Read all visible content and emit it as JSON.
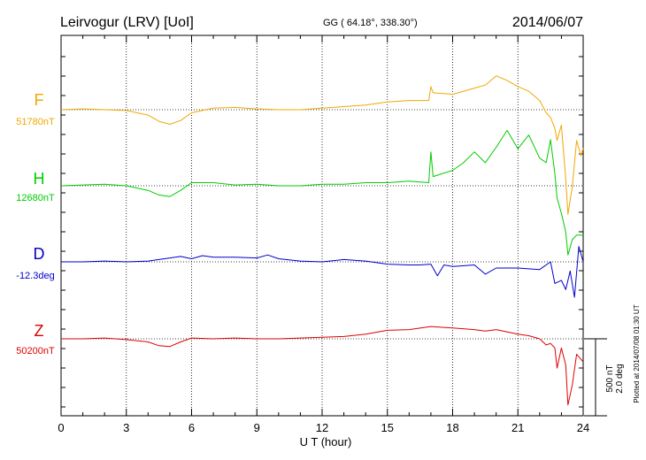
{
  "header": {
    "station": "Leirvogur (LRV)  [UoI]",
    "coords": "GG ( 64.18°, 338.30°)",
    "date": "2014/06/07"
  },
  "side_note": "Plotted at 2014/07/08 01:30 UT",
  "scale_label_nt": "500 nT",
  "scale_label_deg": "2.0 deg",
  "chart_data": {
    "type": "line",
    "xlabel": "U T (hour)",
    "xlim": [
      0,
      24
    ],
    "xticks": [
      0,
      3,
      6,
      9,
      12,
      15,
      18,
      21,
      24
    ],
    "xtick_labels": [
      "0",
      "3",
      "6",
      "9",
      "12",
      "15",
      "18",
      "21",
      "24"
    ],
    "grid": true,
    "series": [
      {
        "name": "F",
        "baseline_label": "51780nT",
        "color": "#f0a800",
        "x": [
          0,
          1,
          2,
          3,
          4,
          4.5,
          5,
          5.5,
          6,
          7,
          8,
          9,
          10,
          11,
          12,
          13,
          14,
          15,
          16,
          16.9,
          17,
          17.1,
          18,
          19,
          19.5,
          20,
          20.5,
          21,
          21.5,
          22,
          22.3,
          22.5,
          22.7,
          22.8,
          23,
          23.1,
          23.2,
          23.3,
          23.5,
          23.7,
          23.9,
          24
        ],
        "y": [
          0,
          5,
          0,
          -5,
          -35,
          -75,
          -95,
          -70,
          -20,
          10,
          15,
          5,
          0,
          0,
          10,
          20,
          30,
          50,
          60,
          60,
          150,
          110,
          100,
          140,
          160,
          220,
          190,
          150,
          120,
          60,
          -20,
          -50,
          -120,
          -200,
          -100,
          -280,
          -450,
          -680,
          -500,
          -200,
          -300,
          -250
        ]
      },
      {
        "name": "H",
        "baseline_label": "12680nT",
        "color": "#00cc00",
        "x": [
          0,
          1,
          2,
          3,
          4,
          4.5,
          5,
          5.5,
          6,
          7,
          8,
          9,
          10,
          11,
          12,
          13,
          14,
          15,
          16,
          16.9,
          17,
          17.1,
          18,
          18.5,
          19,
          19.5,
          20,
          20.5,
          21,
          21.5,
          22,
          22.3,
          22.5,
          22.7,
          22.8,
          23,
          23.2,
          23.3,
          23.5,
          23.7,
          24
        ],
        "y": [
          0,
          5,
          10,
          0,
          -30,
          -60,
          -70,
          -30,
          20,
          20,
          5,
          10,
          0,
          0,
          10,
          10,
          20,
          20,
          30,
          20,
          220,
          60,
          100,
          150,
          220,
          150,
          250,
          360,
          240,
          330,
          180,
          150,
          300,
          80,
          -80,
          -180,
          -300,
          -450,
          -350,
          -320,
          -320
        ]
      },
      {
        "name": "D",
        "baseline_label": "-12.3deg",
        "color": "#0000cc",
        "x": [
          0,
          1,
          2,
          3,
          4,
          5,
          5.5,
          6,
          6.5,
          7,
          8,
          9,
          9.5,
          10,
          11,
          12,
          13,
          14,
          15,
          16,
          16.5,
          17,
          17.3,
          17.6,
          18,
          19,
          19.5,
          20,
          21,
          22,
          22.5,
          22.7,
          23,
          23.2,
          23.4,
          23.6,
          23.8,
          24
        ],
        "y": [
          0,
          0,
          5,
          0,
          5,
          25,
          35,
          20,
          40,
          30,
          30,
          25,
          45,
          20,
          5,
          0,
          15,
          5,
          -15,
          -20,
          -20,
          -15,
          -90,
          -20,
          -30,
          -20,
          -80,
          -40,
          -40,
          -50,
          0,
          -140,
          -120,
          -180,
          -60,
          -230,
          100,
          0
        ]
      },
      {
        "name": "Z",
        "baseline_label": "50200nT",
        "color": "#dd0000",
        "x": [
          0,
          1,
          2,
          3,
          4,
          4.5,
          5,
          5.5,
          6,
          7,
          8,
          9,
          10,
          11,
          12,
          13,
          14,
          15,
          16,
          17,
          18,
          19,
          19.5,
          20,
          21,
          21.5,
          22,
          22.3,
          22.5,
          22.7,
          22.8,
          23,
          23.2,
          23.3,
          23.5,
          23.7,
          24
        ],
        "y": [
          0,
          0,
          5,
          -5,
          -20,
          -45,
          -50,
          -20,
          5,
          0,
          5,
          0,
          0,
          5,
          10,
          15,
          30,
          55,
          60,
          80,
          70,
          60,
          50,
          60,
          30,
          20,
          0,
          -40,
          -30,
          -60,
          -190,
          -60,
          -170,
          -430,
          -300,
          -100,
          -150
        ]
      }
    ]
  }
}
